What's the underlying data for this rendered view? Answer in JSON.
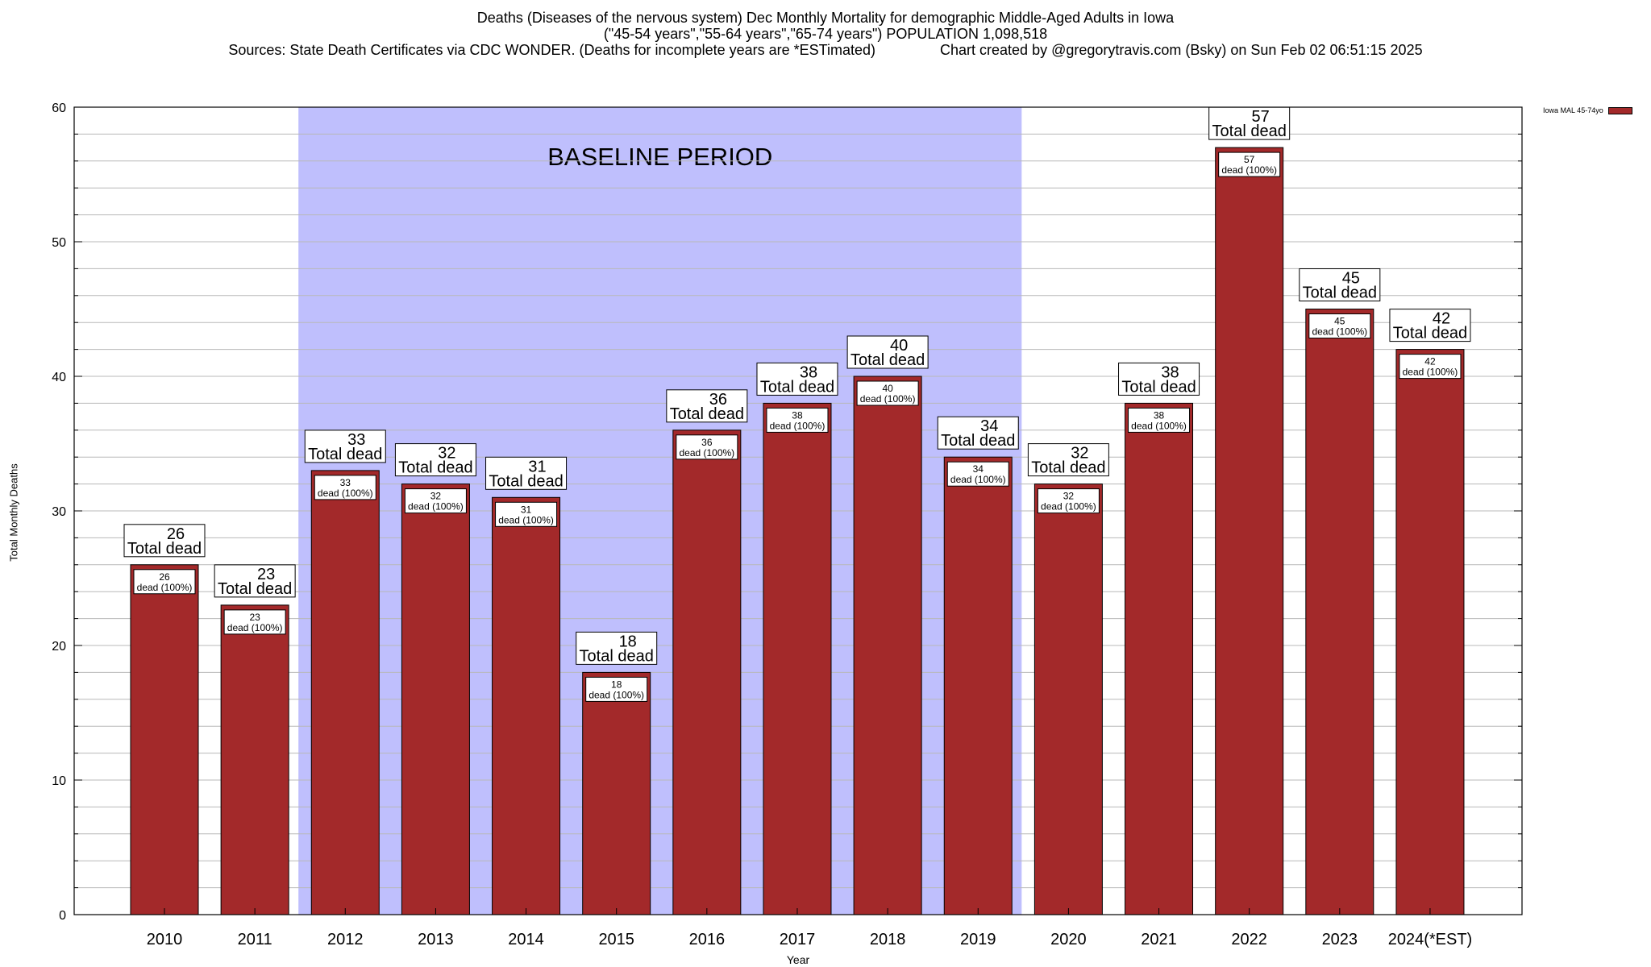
{
  "chart_data": {
    "type": "bar",
    "title_lines": [
      "Deaths (Diseases of the nervous system) Dec Monthly Mortality for demographic Middle-Aged Adults in Iowa",
      "(\"45-54 years\",\"55-64 years\",\"65-74 years\") POPULATION 1,098,518",
      "Sources: State Death Certificates via CDC WONDER. (Deaths for incomplete years are *ESTimated)                Chart created by @gregorytravis.com (Bsky) on Sun Feb 02 06:51:15 2025"
    ],
    "xlabel": "Year",
    "ylabel": "Total Monthly Deaths",
    "ylim": [
      0,
      60
    ],
    "yticks": [
      0,
      10,
      20,
      30,
      40,
      50,
      60
    ],
    "categories": [
      "2010",
      "2011",
      "2012",
      "2013",
      "2014",
      "2015",
      "2016",
      "2017",
      "2018",
      "2019",
      "2020",
      "2021",
      "2022",
      "2023",
      "2024(*EST)"
    ],
    "series": [
      {
        "name": "Iowa MAL 45-74yo",
        "color": "#a3292a",
        "values": [
          26,
          23,
          33,
          32,
          31,
          18,
          36,
          38,
          40,
          34,
          32,
          38,
          57,
          45,
          42
        ]
      }
    ],
    "top_label_suffix": "Total dead",
    "inner_label_suffix": "dead (100%)",
    "baseline_period": {
      "label": "BASELINE PERIOD",
      "start": "2012",
      "end": "2019",
      "color": "#bfbffd"
    },
    "legend_position": "top-right"
  }
}
